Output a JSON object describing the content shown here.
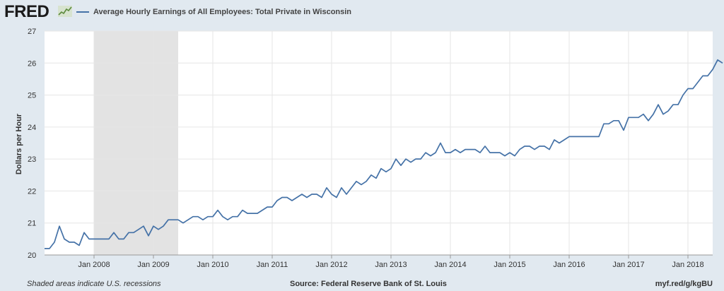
{
  "header": {
    "logo_text": "FRED"
  },
  "chart_data": {
    "type": "line",
    "title": "",
    "xlabel": "",
    "ylabel": "Dollars per Hour",
    "ylim": [
      20,
      27
    ],
    "xlim": [
      "2007-03",
      "2018-06"
    ],
    "yticks": [
      "20",
      "21",
      "22",
      "23",
      "24",
      "25",
      "26",
      "27"
    ],
    "xticks": [
      {
        "date": "2008-01",
        "label": "Jan 2008"
      },
      {
        "date": "2009-01",
        "label": "Jan 2009"
      },
      {
        "date": "2010-01",
        "label": "Jan 2010"
      },
      {
        "date": "2011-01",
        "label": "Jan 2011"
      },
      {
        "date": "2012-01",
        "label": "Jan 2012"
      },
      {
        "date": "2013-01",
        "label": "Jan 2013"
      },
      {
        "date": "2014-01",
        "label": "Jan 2014"
      },
      {
        "date": "2015-01",
        "label": "Jan 2015"
      },
      {
        "date": "2016-01",
        "label": "Jan 2016"
      },
      {
        "date": "2017-01",
        "label": "Jan 2017"
      },
      {
        "date": "2018-01",
        "label": "Jan 2018"
      }
    ],
    "grid": true,
    "legend": "top-left",
    "recession": {
      "start": "2008-01",
      "end": "2009-06"
    },
    "series": [
      {
        "name": "Average Hourly Earnings of All Employees: Total Private in Wisconsin",
        "color": "#4572a7",
        "start": "2007-03",
        "values": [
          20.2,
          20.2,
          20.4,
          20.9,
          20.5,
          20.4,
          20.4,
          20.3,
          20.7,
          20.5,
          20.5,
          20.5,
          20.5,
          20.5,
          20.7,
          20.5,
          20.5,
          20.7,
          20.7,
          20.8,
          20.9,
          20.6,
          20.9,
          20.8,
          20.9,
          21.1,
          21.1,
          21.1,
          21.0,
          21.1,
          21.2,
          21.2,
          21.1,
          21.2,
          21.2,
          21.4,
          21.2,
          21.1,
          21.2,
          21.2,
          21.4,
          21.3,
          21.3,
          21.3,
          21.4,
          21.5,
          21.5,
          21.7,
          21.8,
          21.8,
          21.7,
          21.8,
          21.9,
          21.8,
          21.9,
          21.9,
          21.8,
          22.1,
          21.9,
          21.8,
          22.1,
          21.9,
          22.1,
          22.3,
          22.2,
          22.3,
          22.5,
          22.4,
          22.7,
          22.6,
          22.7,
          23.0,
          22.8,
          23.0,
          22.9,
          23.0,
          23.0,
          23.2,
          23.1,
          23.2,
          23.5,
          23.2,
          23.2,
          23.3,
          23.2,
          23.3,
          23.3,
          23.3,
          23.2,
          23.4,
          23.2,
          23.2,
          23.2,
          23.1,
          23.2,
          23.1,
          23.3,
          23.4,
          23.4,
          23.3,
          23.4,
          23.4,
          23.3,
          23.6,
          23.5,
          23.6,
          23.7,
          23.7,
          23.7,
          23.7,
          23.7,
          23.7,
          23.7,
          24.1,
          24.1,
          24.2,
          24.2,
          23.9,
          24.3,
          24.3,
          24.3,
          24.4,
          24.2,
          24.4,
          24.7,
          24.4,
          24.5,
          24.7,
          24.7,
          25.0,
          25.2,
          25.2,
          25.4,
          25.6,
          25.6,
          25.8,
          26.1,
          26.0
        ]
      }
    ]
  },
  "footer": {
    "note": "Shaded areas indicate U.S. recessions",
    "source": "Source: Federal Reserve Bank of St. Louis",
    "link": "myf.red/g/kgBU"
  }
}
